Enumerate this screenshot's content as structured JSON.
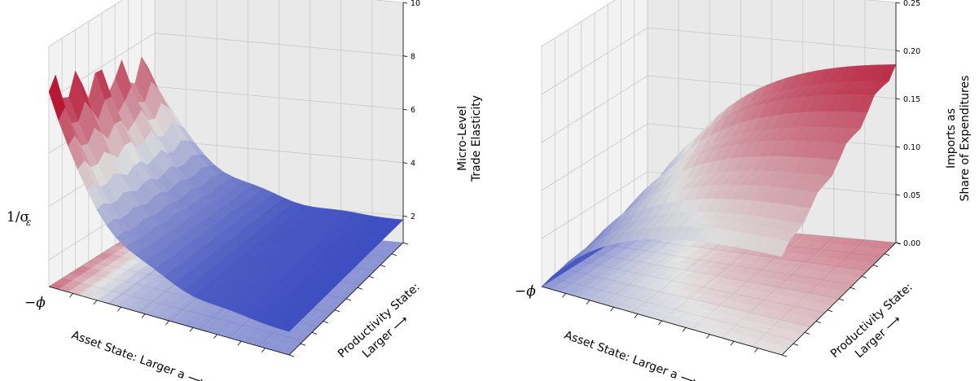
{
  "chart_data": [
    {
      "type": "surface",
      "zlabel_line1": "Micro-Level",
      "zlabel_line2": "Trade Elasticity",
      "xlabel": "Asset State: Larger a ⟶",
      "ylabel_line1": "Productivity State:",
      "ylabel_line2": "Larger ⟶",
      "x_tick_label": "−ϕ",
      "side_label": "1/σ",
      "side_label_sub": "ε",
      "zticks": [
        "2",
        "4",
        "6",
        "8",
        "10"
      ],
      "zlim": [
        1,
        10
      ],
      "colormap": "coolwarm",
      "colormap_colors": [
        "#3b4cc0",
        "#dddddd",
        "#b40426"
      ],
      "surface_description_values": {
        "x_points": 25,
        "y_points": 16,
        "z_min": 1.8,
        "z_max": 8.3
      }
    },
    {
      "type": "surface",
      "zlabel_line1": "Imports as",
      "zlabel_line2": "Share of Expenditures",
      "xlabel": "Asset State: Larger a ⟶",
      "ylabel_line1": "Productivity State:",
      "ylabel_line2": "Larger ⟶",
      "x_tick_label": "−ϕ",
      "zticks": [
        "0.00",
        "0.05",
        "0.10",
        "0.15",
        "0.20",
        "0.25"
      ],
      "zlim": [
        0,
        0.25
      ],
      "colormap": "coolwarm",
      "colormap_colors": [
        "#3b4cc0",
        "#dddddd",
        "#b40426"
      ],
      "surface_description_values": {
        "x_points": 25,
        "y_points": 16,
        "z_min": 0.0,
        "z_max": 0.2
      }
    }
  ]
}
